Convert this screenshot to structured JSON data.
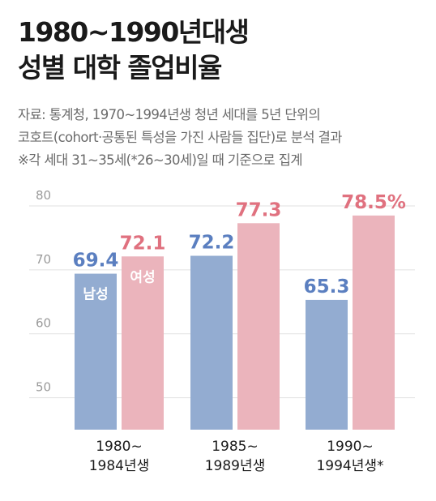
{
  "header": {
    "title_line1": "1980~1990년대생",
    "title_line2": "성별 대학 졸업비율"
  },
  "note": {
    "line1": "자료: 통계청, 1970~1994년생 청년 세대를 5년 단위의",
    "line2": "코호트(cohort·공통된 특성을 가진 사람들 집단)로 분석 결과",
    "line3": "※각 세대 31~35세(*26~30세)일 때 기준으로 집계"
  },
  "chart_data": {
    "type": "bar",
    "title": "",
    "xlabel": "",
    "ylabel": "",
    "categories": [
      [
        "1980~",
        "1984년생"
      ],
      [
        "1985~",
        "1989년생"
      ],
      [
        "1990~",
        "1994년생*"
      ]
    ],
    "series": [
      {
        "name": "남성",
        "values": [
          69.4,
          72.2,
          65.3
        ],
        "labels": [
          "69.4",
          "72.2",
          "65.3"
        ],
        "color": "#93acd1",
        "label_color": "#5b7fc0"
      },
      {
        "name": "여성",
        "values": [
          72.1,
          77.3,
          78.5
        ],
        "labels": [
          "72.1",
          "77.3",
          "78.5%"
        ],
        "color": "#ebb4bc",
        "label_color": "#e0717f"
      }
    ],
    "ylim": [
      45,
      80
    ],
    "yticks": [
      50,
      60,
      70,
      80
    ],
    "ytick_labels": [
      "50",
      "60",
      "70",
      "80"
    ],
    "grid": true,
    "legend": "inside first bars"
  }
}
